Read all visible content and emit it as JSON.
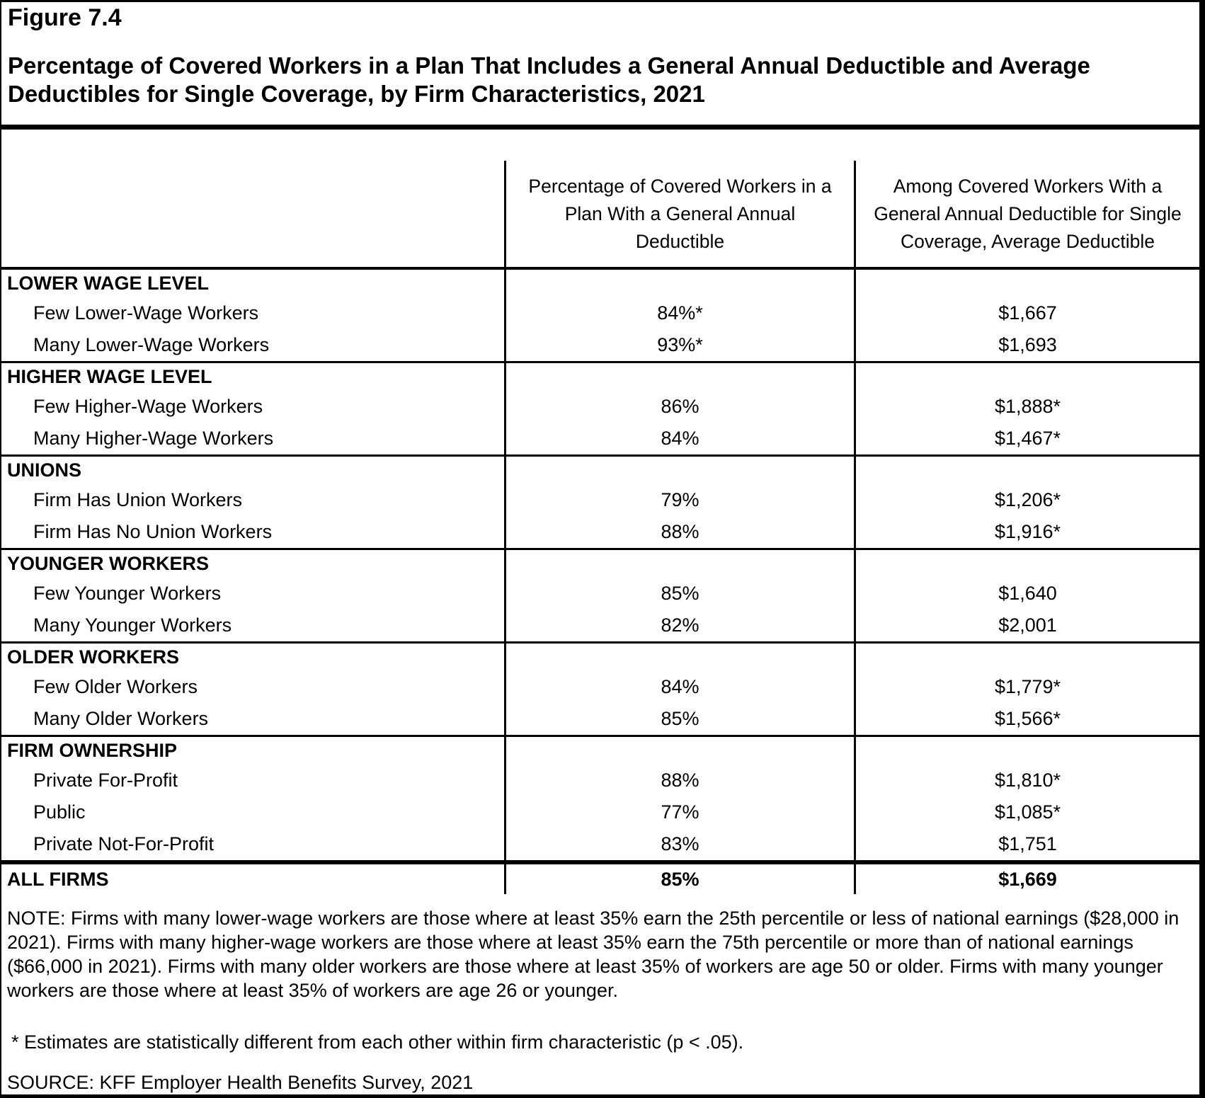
{
  "figure": {
    "label": "Figure 7.4",
    "title_lines": [
      "Percentage of Covered Workers in a Plan That Includes a General Annual Deductible and Average",
      "Deductibles for Single Coverage, by Firm Characteristics, 2021"
    ]
  },
  "table": {
    "col_headers": [
      {
        "lines": [
          "Percentage of Covered Workers in a",
          "Plan With a General Annual",
          "Deductible"
        ]
      },
      {
        "lines": [
          "Among Covered Workers With a",
          "General Annual Deductible for Single",
          "Coverage, Average Deductible"
        ]
      }
    ],
    "sections": [
      {
        "header": "LOWER WAGE LEVEL",
        "rows": [
          {
            "label": "Few Lower-Wage Workers",
            "pct": "84%*",
            "deductible": "$1,667"
          },
          {
            "label": "Many Lower-Wage Workers",
            "pct": "93%*",
            "deductible": "$1,693"
          }
        ]
      },
      {
        "header": "HIGHER WAGE LEVEL",
        "rows": [
          {
            "label": "Few Higher-Wage Workers",
            "pct": "86%",
            "deductible": "$1,888*"
          },
          {
            "label": "Many Higher-Wage Workers",
            "pct": "84%",
            "deductible": "$1,467*"
          }
        ]
      },
      {
        "header": "UNIONS",
        "rows": [
          {
            "label": "Firm Has Union Workers",
            "pct": "79%",
            "deductible": "$1,206*"
          },
          {
            "label": "Firm Has No Union Workers",
            "pct": "88%",
            "deductible": "$1,916*"
          }
        ]
      },
      {
        "header": "YOUNGER WORKERS",
        "rows": [
          {
            "label": "Few Younger Workers",
            "pct": "85%",
            "deductible": "$1,640"
          },
          {
            "label": "Many Younger Workers",
            "pct": "82%",
            "deductible": "$2,001"
          }
        ]
      },
      {
        "header": "OLDER WORKERS",
        "rows": [
          {
            "label": "Few Older Workers",
            "pct": "84%",
            "deductible": "$1,779*"
          },
          {
            "label": "Many Older Workers",
            "pct": "85%",
            "deductible": "$1,566*"
          }
        ]
      },
      {
        "header": "FIRM OWNERSHIP",
        "rows": [
          {
            "label": "Private For-Profit",
            "pct": "88%",
            "deductible": "$1,810*"
          },
          {
            "label": "Public",
            "pct": "77%",
            "deductible": "$1,085*"
          },
          {
            "label": "Private Not-For-Profit",
            "pct": "83%",
            "deductible": "$1,751"
          }
        ]
      }
    ],
    "total_row": {
      "label": "ALL FIRMS",
      "pct": "85%",
      "deductible": "$1,669"
    }
  },
  "notes": {
    "note_lines": [
      "NOTE: Firms with many lower-wage workers are those where at least 35% earn the 25th percentile or less of national earnings ($28,000 in",
      "2021). Firms with many higher-wage workers are those where at least 35% earn the 75th percentile or more than of national earnings",
      "($66,000 in 2021). Firms with many older workers are those where at least 35% of workers are age 50 or older. Firms with many younger",
      "workers are those where at least 35% of workers are age 26 or younger."
    ],
    "footnote": "* Estimates are statistically different from each other within firm characteristic (p < .05).",
    "source": "SOURCE: KFF Employer Health Benefits Survey, 2021"
  },
  "colors": {
    "text": "#000000",
    "background": "#ffffff",
    "rule": "#000000"
  }
}
